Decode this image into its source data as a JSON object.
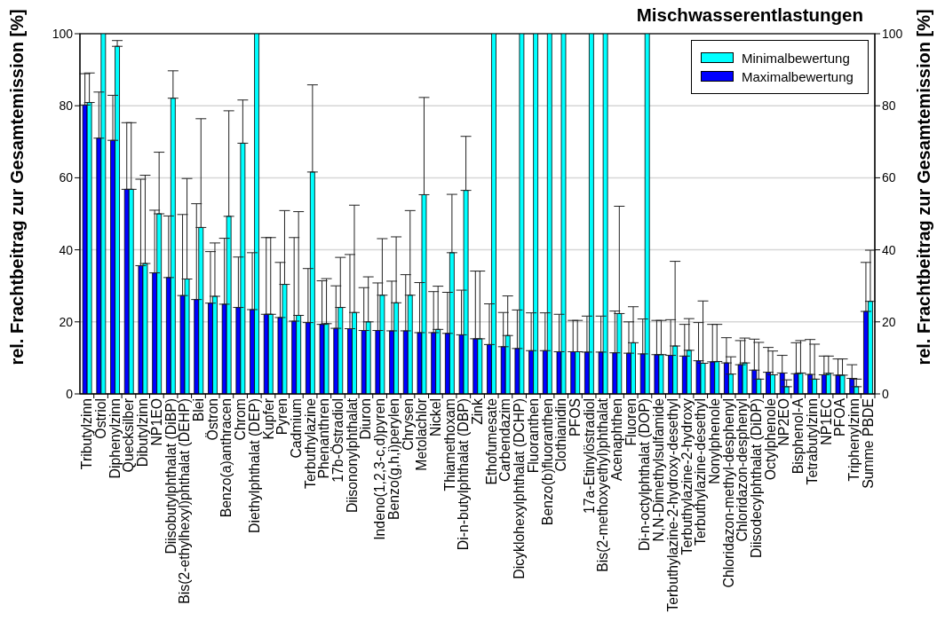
{
  "chart_data": {
    "type": "bar",
    "title": "Mischwasserentlastungen",
    "ylabel": "rel. Frachtbeitrag zur Gesamtemission [%]",
    "y2label": "rel. Frachtbeitrag zur Gesamtemission [%]",
    "categories": [
      "Tributylzinn",
      "Östriol",
      "Diphenylzinn",
      "Quecksilber",
      "Dibutylzinn",
      "NP1EO",
      "Diisobutylphthalat (DiBP)",
      "Bis(2-ethylhexyl)phthalat (DEHP)",
      "Blei",
      "Östron",
      "Benzo(a)anthracen",
      "Chrom",
      "Diethylphthalat (DEP)",
      "Kupfer",
      "Pyren",
      "Cadmium",
      "Terbuthylazine",
      "Phenanthren",
      "17b-Östradiol",
      "Diisononylphthalat",
      "Diuron",
      "Indeno(1,2,3-c,d)pyren",
      "Benzo(g,h,i)perylen",
      "Chrysen",
      "Metolachlor",
      "Nickel",
      "Thiamethoxam",
      "Di-n-butylphthalat (DBP)",
      "Zink",
      "Ethofumesate",
      "Carbendazim",
      "Dicyklohexylphthalat (DCHP)",
      "Fluoranthen",
      "Benzo(b)fluoranthen",
      "Clothianidin",
      "PFOS",
      "17a-Etinylöstradiol",
      "Bis(2-methoxyethyl)phthalat",
      "Acenaphthen",
      "Fluoren",
      "Di-n-octylphthalat (DOP)",
      "N,N-Dimethylsulfamide",
      "Terbuthylazine-2-hydroxy-desethyl",
      "Terbuthylazine-2-hydroxy",
      "Terbuthylazine-desethyl",
      "Nonylphenole",
      "Chloridazon-methyl-desphenyl",
      "Chloridazon-desphenyl",
      "Diisodecylphthalat (DiDP)",
      "Octylphenole",
      "NP2EO",
      "Bisphenol-A",
      "Tetrabutylzinn",
      "NP1EC",
      "PFOA",
      "Triphenylzinn",
      "Summe PBDE"
    ],
    "series": [
      {
        "name": "Minimalbewertung",
        "color": "#00ffff",
        "values": [
          80.9,
          100,
          96.5,
          56.8,
          36.2,
          50.0,
          82.1,
          31.9,
          46.2,
          27.1,
          49.3,
          69.6,
          100,
          22.1,
          30.4,
          21.8,
          61.6,
          19.5,
          24.0,
          22.6,
          20.0,
          27.4,
          25.3,
          27.4,
          55.3,
          17.9,
          39.2,
          56.5,
          15.3,
          100,
          16.2,
          100,
          100,
          100,
          100,
          11.7,
          100,
          100,
          22.3,
          14.2,
          100,
          10.9,
          13.3,
          12.1,
          8.5,
          9.0,
          5.5,
          8.6,
          4.1,
          5.3,
          2.0,
          5.8,
          4.1,
          5.7,
          5.2,
          2.0,
          25.7
        ],
        "errors": [
          [
            80.9,
            89.1
          ],
          null,
          [
            96.5,
            98.1
          ],
          [
            56.8,
            75.3
          ],
          [
            36.2,
            60.7
          ],
          [
            50.0,
            67.1
          ],
          [
            82.1,
            89.7
          ],
          [
            31.9,
            59.8
          ],
          [
            46.2,
            76.4
          ],
          [
            27.1,
            41.9
          ],
          [
            49.3,
            78.6
          ],
          [
            69.6,
            81.6
          ],
          null,
          [
            22.1,
            43.4
          ],
          [
            30.4,
            50.9
          ],
          [
            21.8,
            50.6
          ],
          [
            61.6,
            85.8
          ],
          [
            19.5,
            32.0
          ],
          [
            24.0,
            37.9
          ],
          [
            22.6,
            52.4
          ],
          [
            20.0,
            32.5
          ],
          [
            27.4,
            43.1
          ],
          [
            25.3,
            43.6
          ],
          [
            27.4,
            50.9
          ],
          [
            55.3,
            82.3
          ],
          [
            17.9,
            29.9
          ],
          [
            39.2,
            55.4
          ],
          [
            56.5,
            71.5
          ],
          [
            15.3,
            34.1
          ],
          null,
          [
            16.2,
            27.2
          ],
          null,
          null,
          null,
          null,
          [
            11.7,
            20.4
          ],
          null,
          null,
          [
            22.3,
            52.1
          ],
          [
            14.2,
            24.2
          ],
          null,
          [
            10.9,
            20.4
          ],
          [
            13.3,
            36.8
          ],
          [
            12.1,
            20.9
          ],
          [
            8.5,
            25.8
          ],
          [
            9.0,
            19.3
          ],
          [
            5.5,
            10.3
          ],
          [
            8.6,
            15.5
          ],
          [
            4.1,
            14.3
          ],
          [
            5.3,
            11.9
          ],
          [
            2.0,
            3.9
          ],
          [
            5.8,
            14.8
          ],
          [
            4.1,
            13.8
          ],
          [
            5.7,
            10.5
          ],
          [
            5.2,
            9.7
          ],
          [
            2.0,
            4.1
          ],
          [
            25.7,
            39.9
          ]
        ]
      },
      {
        "name": "Maximalbewertung",
        "color": "#0000ff",
        "values": [
          80.2,
          71.0,
          70.4,
          56.8,
          35.6,
          33.6,
          32.3,
          27.3,
          26.2,
          25.2,
          24.9,
          24.0,
          23.4,
          22.1,
          21.2,
          20.2,
          19.8,
          19.3,
          18.2,
          18.1,
          17.6,
          17.6,
          17.5,
          17.5,
          17.0,
          17.0,
          16.8,
          16.4,
          15.3,
          13.7,
          13.1,
          12.6,
          12.0,
          12.0,
          11.7,
          11.7,
          11.6,
          11.6,
          11.4,
          11.3,
          11.1,
          10.9,
          10.7,
          10.5,
          9.2,
          8.9,
          8.6,
          8.1,
          6.6,
          6.0,
          5.8,
          5.6,
          5.4,
          5.3,
          5.2,
          4.3,
          22.9
        ],
        "errors": [
          [
            80.2,
            88.9
          ],
          [
            71.0,
            83.8
          ],
          [
            70.4,
            82.9
          ],
          [
            56.8,
            75.3
          ],
          [
            35.6,
            59.6
          ],
          [
            33.6,
            51.0
          ],
          [
            32.3,
            49.4
          ],
          [
            27.3,
            49.8
          ],
          [
            26.2,
            52.8
          ],
          [
            25.2,
            39.5
          ],
          [
            24.9,
            43.2
          ],
          [
            24.0,
            38.0
          ],
          [
            23.4,
            39.2
          ],
          [
            22.1,
            43.4
          ],
          [
            21.2,
            36.5
          ],
          [
            20.2,
            43.4
          ],
          [
            19.8,
            34.8
          ],
          [
            19.3,
            31.4
          ],
          [
            18.2,
            30.0
          ],
          [
            18.1,
            38.7
          ],
          [
            17.6,
            29.5
          ],
          [
            17.6,
            30.8
          ],
          [
            17.5,
            31.3
          ],
          [
            17.5,
            33.1
          ],
          [
            17.0,
            30.9
          ],
          [
            17.0,
            28.4
          ],
          [
            16.8,
            28.2
          ],
          [
            16.4,
            28.8
          ],
          [
            15.3,
            34.1
          ],
          [
            13.7,
            25.0
          ],
          [
            13.1,
            22.6
          ],
          [
            12.6,
            23.3
          ],
          [
            12.0,
            22.5
          ],
          [
            12.0,
            22.5
          ],
          [
            11.7,
            22.1
          ],
          [
            11.7,
            20.4
          ],
          [
            11.6,
            21.6
          ],
          [
            11.6,
            21.6
          ],
          [
            11.4,
            23.0
          ],
          [
            11.3,
            20.0
          ],
          [
            11.1,
            20.8
          ],
          [
            10.9,
            20.4
          ],
          [
            10.7,
            20.6
          ],
          [
            10.5,
            19.3
          ],
          [
            9.2,
            19.8
          ],
          [
            8.9,
            19.3
          ],
          [
            8.6,
            15.6
          ],
          [
            8.1,
            14.8
          ],
          [
            6.6,
            15.2
          ],
          [
            6.0,
            12.9
          ],
          [
            5.8,
            10.7
          ],
          [
            5.6,
            14.2
          ],
          [
            5.4,
            15.1
          ],
          [
            5.3,
            10.5
          ],
          [
            5.2,
            9.7
          ],
          [
            4.3,
            8.1
          ],
          [
            22.9,
            36.5
          ]
        ]
      }
    ],
    "ylim": [
      0,
      100
    ],
    "yticks": [
      0,
      20,
      40,
      60,
      80,
      100
    ],
    "y2lim": [
      0,
      100
    ],
    "y2ticks": [
      0,
      20,
      40,
      60,
      80,
      100
    ],
    "grid": "y",
    "legend": "top right"
  }
}
